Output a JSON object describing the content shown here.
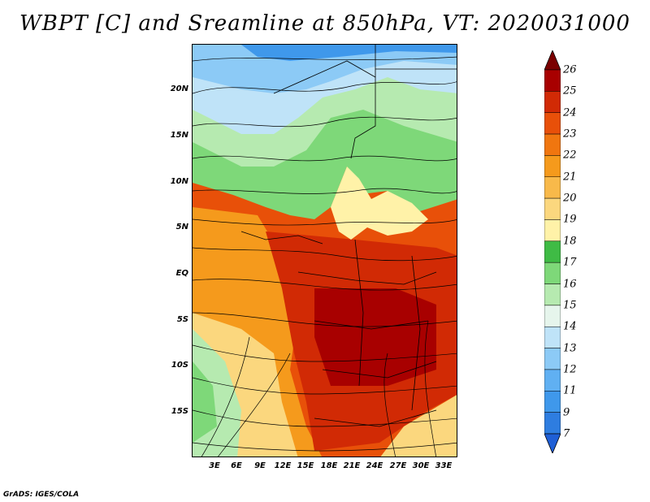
{
  "title": "WBPT [C] and Sreamline at 850hPa, VT: 2020031000",
  "credit": "GrADS: IGES/COLA",
  "lat_labels": [
    "20N",
    "15N",
    "10N",
    "5N",
    "EQ",
    "5S",
    "10S",
    "15S"
  ],
  "lon_labels": [
    "3E",
    "6E",
    "9E",
    "12E",
    "15E",
    "18E",
    "21E",
    "24E",
    "27E",
    "30E",
    "33E"
  ],
  "colorbar": {
    "levels": [
      "7",
      "9",
      "11",
      "12",
      "13",
      "14",
      "15",
      "16",
      "17",
      "18",
      "19",
      "20",
      "21",
      "22",
      "23",
      "24",
      "25",
      "26"
    ],
    "colors": [
      "#1f5fd6",
      "#2e7de0",
      "#3f98eb",
      "#60b0f2",
      "#8ccaf6",
      "#bfe3f8",
      "#e6f5ec",
      "#b6eab0",
      "#7ed879",
      "#3fbb45",
      "#fff2a8",
      "#fbd77e",
      "#f8b94a",
      "#f59a1c",
      "#f0760f",
      "#e85009",
      "#d12a05",
      "#a80000",
      "#7a0000"
    ]
  }
}
